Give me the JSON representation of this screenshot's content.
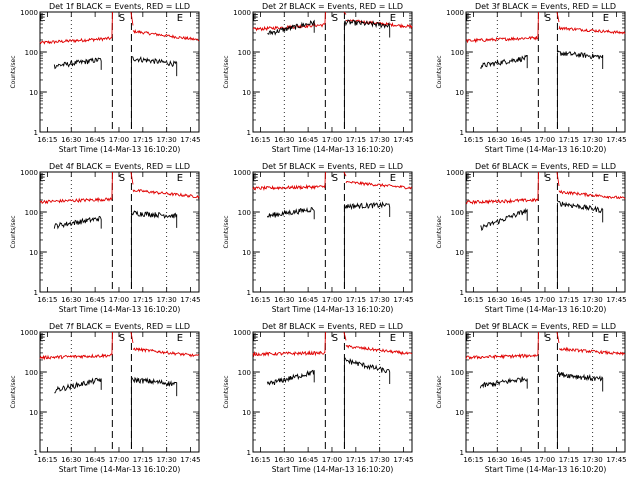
{
  "chart_data": {
    "type": "line",
    "xlabel": "Start Time (14-Mar-13 16:10:20)",
    "ylabel": "Counts/sec",
    "x_tick_labels": [
      "16:15",
      "16:30",
      "16:45",
      "17:00",
      "17:15",
      "17:30",
      "17:45"
    ],
    "x_ticks_min_from_start": [
      4.67,
      19.67,
      34.67,
      49.67,
      64.67,
      79.67,
      94.67
    ],
    "xlim_min": [
      0,
      100
    ],
    "y_scale": "log",
    "ylim": [
      1,
      1000
    ],
    "y_tick_labels": [
      "1",
      "10",
      "100",
      "1000"
    ],
    "markers": {
      "dotted_min": [
        19.67,
        79.67
      ],
      "dashed_min": [
        45.5,
        57.5
      ],
      "letters": [
        {
          "text": "E",
          "at_min": 1.5
        },
        {
          "text": "S",
          "at_min": 51.5
        },
        {
          "text": "E",
          "at_min": 88
        }
      ]
    },
    "series_colors": {
      "events": "#000000",
      "lld": "#e00000"
    },
    "panels": [
      {
        "title": "Det 1f BLACK = Events, RED = LLD",
        "events": {
          "seg1": [
            45,
            65
          ],
          "seg2": [
            70,
            50
          ]
        },
        "lld": {
          "before": [
            170,
            220
          ],
          "after": [
            330,
            200
          ]
        }
      },
      {
        "title": "Det 2f BLACK = Events, RED = LLD",
        "events": {
          "seg1": [
            290,
            550
          ],
          "seg2": [
            560,
            460
          ]
        },
        "lld": {
          "before": [
            370,
            480
          ],
          "after": [
            620,
            430
          ]
        }
      },
      {
        "title": "Det 3f BLACK = Events, RED = LLD",
        "events": {
          "seg1": [
            45,
            72
          ],
          "seg2": [
            95,
            75
          ]
        },
        "lld": {
          "before": [
            190,
            230
          ],
          "after": [
            400,
            300
          ]
        }
      },
      {
        "title": "Det 4f BLACK = Events, RED = LLD",
        "events": {
          "seg1": [
            45,
            70
          ],
          "seg2": [
            95,
            80
          ]
        },
        "lld": {
          "before": [
            180,
            210
          ],
          "after": [
            350,
            240
          ]
        }
      },
      {
        "title": "Det 5f BLACK = Events, RED = LLD",
        "events": {
          "seg1": [
            80,
            120
          ],
          "seg2": [
            140,
            150
          ]
        },
        "lld": {
          "before": [
            390,
            430
          ],
          "after": [
            560,
            400
          ]
        }
      },
      {
        "title": "Det 6f BLACK = Events, RED = LLD",
        "events": {
          "seg1": [
            40,
            110
          ],
          "seg2": [
            170,
            110
          ]
        },
        "lld": {
          "before": [
            175,
            200
          ],
          "after": [
            320,
            220
          ]
        }
      },
      {
        "title": "Det 7f BLACK = Events, RED = LLD",
        "events": {
          "seg1": [
            35,
            65
          ],
          "seg2": [
            65,
            50
          ]
        },
        "lld": {
          "before": [
            230,
            260
          ],
          "after": [
            380,
            250
          ]
        }
      },
      {
        "title": "Det 8f BLACK = Events, RED = LLD",
        "events": {
          "seg1": [
            50,
            100
          ],
          "seg2": [
            200,
            100
          ]
        },
        "lld": {
          "before": [
            280,
            300
          ],
          "after": [
            440,
            280
          ]
        }
      },
      {
        "title": "Det 9f BLACK = Events, RED = LLD",
        "events": {
          "seg1": [
            45,
            70
          ],
          "seg2": [
            90,
            65
          ]
        },
        "lld": {
          "before": [
            230,
            260
          ],
          "after": [
            380,
            280
          ]
        }
      }
    ]
  }
}
